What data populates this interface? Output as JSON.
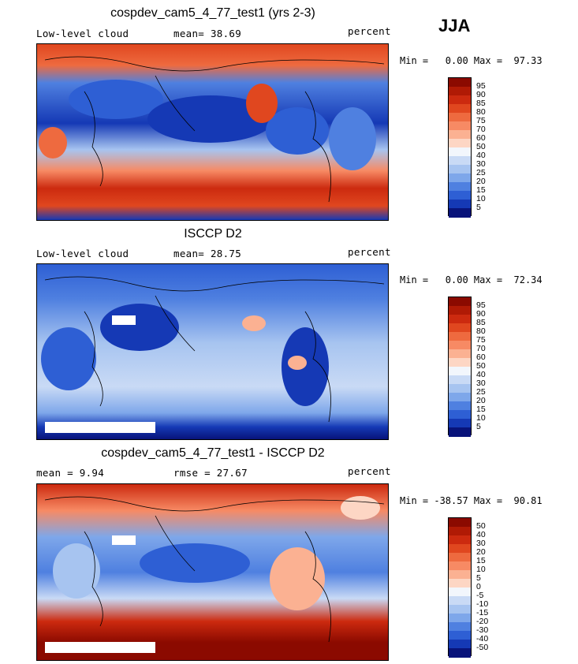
{
  "season": "JJA",
  "panels": [
    {
      "title": "cospdev_cam5_4_77_test1 (yrs 2-3)",
      "left_label": "Low-level cloud",
      "mid_label": "mean=  38.69",
      "units": "percent",
      "min_max": "Min =   0.00 Max =  97.33",
      "colorbar": {
        "labels": [
          "95",
          "90",
          "85",
          "80",
          "75",
          "70",
          "60",
          "50",
          "40",
          "30",
          "25",
          "20",
          "15",
          "10",
          "5"
        ],
        "colors": [
          "#8b0a00",
          "#b01a05",
          "#cc2a0f",
          "#e0471f",
          "#ee6a3f",
          "#f78a64",
          "#fbb192",
          "#fdd6c4",
          "#f2f6fc",
          "#c9daf5",
          "#a7c4f0",
          "#7ea7ea",
          "#4f80e0",
          "#2e5fd4",
          "#1539b5",
          "#08137a"
        ]
      }
    },
    {
      "title": "ISCCP D2",
      "left_label": "Low-level cloud",
      "mid_label": "mean=  28.75",
      "units": "percent",
      "min_max": "Min =   0.00 Max =  72.34",
      "colorbar": {
        "labels": [
          "95",
          "90",
          "85",
          "80",
          "75",
          "70",
          "60",
          "50",
          "40",
          "30",
          "25",
          "20",
          "15",
          "10",
          "5"
        ],
        "colors": [
          "#8b0a00",
          "#b01a05",
          "#cc2a0f",
          "#e0471f",
          "#ee6a3f",
          "#f78a64",
          "#fbb192",
          "#fdd6c4",
          "#f2f6fc",
          "#c9daf5",
          "#a7c4f0",
          "#7ea7ea",
          "#4f80e0",
          "#2e5fd4",
          "#1539b5",
          "#08137a"
        ]
      }
    },
    {
      "title": "cospdev_cam5_4_77_test1 - ISCCP D2",
      "left_label": "mean =    9.94",
      "mid_label": "rmse =   27.67",
      "units": "percent",
      "min_max": "Min = -38.57 Max =  90.81",
      "colorbar": {
        "labels": [
          "50",
          "40",
          "30",
          "20",
          "15",
          "10",
          "5",
          "0",
          "-5",
          "-10",
          "-15",
          "-20",
          "-30",
          "-40",
          "-50"
        ],
        "colors": [
          "#8b0a00",
          "#b01a05",
          "#cc2a0f",
          "#e0471f",
          "#ee6a3f",
          "#f78a64",
          "#fbb192",
          "#fdd6c4",
          "#f2f6fc",
          "#c9daf5",
          "#a7c4f0",
          "#7ea7ea",
          "#4f80e0",
          "#2e5fd4",
          "#1539b5",
          "#08137a"
        ]
      }
    }
  ]
}
